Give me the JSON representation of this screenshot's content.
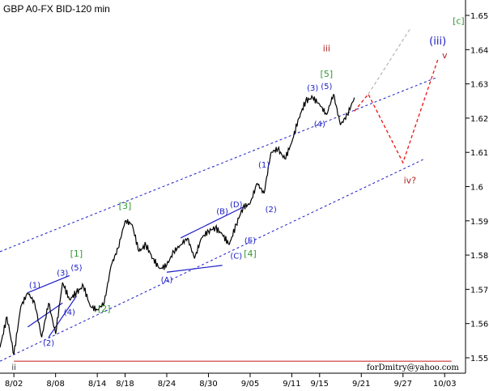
{
  "chart_data": {
    "type": "line",
    "title": "GBP A0-FX BID-120 min",
    "credit": "forDmitry@yahoo.com",
    "ylim": [
      1.5455,
      1.6545
    ],
    "yticks": [
      1.55,
      1.56,
      1.57,
      1.58,
      1.59,
      1.6,
      1.61,
      1.62,
      1.63,
      1.64,
      1.65
    ],
    "x_range": [
      "07/31",
      "10/06"
    ],
    "xticks": [
      {
        "date": "08/02",
        "label": "8/02"
      },
      {
        "date": "08/08",
        "label": "8/08"
      },
      {
        "date": "08/14",
        "label": "8/14"
      },
      {
        "date": "08/18",
        "label": "8/18"
      },
      {
        "date": "08/24",
        "label": "8/24"
      },
      {
        "date": "08/30",
        "label": "8/30"
      },
      {
        "date": "09/05",
        "label": "9/05"
      },
      {
        "date": "09/11",
        "label": "9/11"
      },
      {
        "date": "09/15",
        "label": "9/15"
      },
      {
        "date": "09/21",
        "label": "9/21"
      },
      {
        "date": "09/27",
        "label": "9/27"
      },
      {
        "date": "10/03",
        "label": "10/03"
      }
    ],
    "grid": false,
    "series": [
      {
        "color": "#000000",
        "points": [
          [
            "07/31",
            1.553
          ],
          [
            "08/01",
            1.562
          ],
          [
            "08/02",
            1.551
          ],
          [
            "08/03",
            1.565
          ],
          [
            "08/04",
            1.569
          ],
          [
            "08/05",
            1.566
          ],
          [
            "08/06",
            1.556
          ],
          [
            "08/07",
            1.566
          ],
          [
            "08/08",
            1.557
          ],
          [
            "08/09",
            1.572
          ],
          [
            "08/10",
            1.567
          ],
          [
            "08/11",
            1.569
          ],
          [
            "08/12",
            1.571
          ],
          [
            "08/13",
            1.565
          ],
          [
            "08/14",
            1.564
          ],
          [
            "08/15",
            1.566
          ],
          [
            "08/16",
            1.577
          ],
          [
            "08/17",
            1.582
          ],
          [
            "08/18",
            1.59
          ],
          [
            "08/19",
            1.589
          ],
          [
            "08/20",
            1.581
          ],
          [
            "08/21",
            1.583
          ],
          [
            "08/22",
            1.579
          ],
          [
            "08/23",
            1.576
          ],
          [
            "08/24",
            1.577
          ],
          [
            "08/25",
            1.581
          ],
          [
            "08/26",
            1.583
          ],
          [
            "08/27",
            1.585
          ],
          [
            "08/28",
            1.579
          ],
          [
            "08/29",
            1.585
          ],
          [
            "08/30",
            1.587
          ],
          [
            "08/31",
            1.588
          ],
          [
            "09/01",
            1.586
          ],
          [
            "09/02",
            1.583
          ],
          [
            "09/03",
            1.589
          ],
          [
            "09/04",
            1.594
          ],
          [
            "09/05",
            1.595
          ],
          [
            "09/06",
            1.601
          ],
          [
            "09/07",
            1.598
          ],
          [
            "09/08",
            1.61
          ],
          [
            "09/09",
            1.611
          ],
          [
            "09/10",
            1.608
          ],
          [
            "09/11",
            1.613
          ],
          [
            "09/12",
            1.62
          ],
          [
            "09/13",
            1.625
          ],
          [
            "09/14",
            1.626
          ],
          [
            "09/15",
            1.624
          ],
          [
            "09/16",
            1.621
          ],
          [
            "09/17",
            1.627
          ],
          [
            "09/18",
            1.618
          ],
          [
            "09/19",
            1.621
          ],
          [
            "09/20",
            1.626
          ]
        ]
      },
      {
        "name": "forecast",
        "color": "#ee1111",
        "dashed": true,
        "points": [
          [
            "09/20",
            1.622
          ],
          [
            "09/22",
            1.627
          ],
          [
            "09/27",
            1.607
          ],
          [
            "10/02",
            1.637
          ]
        ]
      },
      {
        "name": "alternate",
        "color": "#bbbbbb",
        "dashed": true,
        "points": [
          [
            "09/22",
            1.627
          ],
          [
            "09/28",
            1.646
          ]
        ]
      }
    ],
    "channels": [
      {
        "color": "#1c1cc8",
        "dashed": true,
        "points": [
          [
            "07/31",
            1.581
          ],
          [
            "10/02",
            1.632
          ]
        ]
      },
      {
        "color": "#1c1cc8",
        "dashed": true,
        "points": [
          [
            "07/31",
            1.549
          ],
          [
            "09/30",
            1.608
          ]
        ]
      },
      {
        "color": "#1c1cc8",
        "dashed": false,
        "points": [
          [
            "08/04",
            1.569
          ],
          [
            "08/10",
            1.574
          ]
        ]
      },
      {
        "color": "#1c1cc8",
        "dashed": false,
        "points": [
          [
            "08/04",
            1.559
          ],
          [
            "08/09",
            1.566
          ]
        ]
      },
      {
        "color": "#1c1cc8",
        "dashed": false,
        "points": [
          [
            "08/07",
            1.556
          ],
          [
            "08/11",
            1.568
          ]
        ]
      },
      {
        "color": "#1c1cc8",
        "dashed": false,
        "points": [
          [
            "08/26",
            1.585
          ],
          [
            "09/04",
            1.594
          ]
        ]
      },
      {
        "color": "#1c1cc8",
        "dashed": false,
        "points": [
          [
            "08/24",
            1.575
          ],
          [
            "09/01",
            1.577
          ]
        ]
      }
    ],
    "hlines": [
      {
        "y": 1.549,
        "color": "#cc3333",
        "from": "08/02",
        "to": "10/04"
      }
    ],
    "annotations": [
      {
        "text": "ii",
        "date": "08/02",
        "y": 1.5465,
        "color": "#333333"
      },
      {
        "text": "(1)",
        "date": "08/05",
        "y": 1.5705,
        "color": "#1c1cc8"
      },
      {
        "text": "(2)",
        "date": "08/07",
        "y": 1.5535,
        "color": "#1c1cc8"
      },
      {
        "text": "(3)",
        "date": "08/09",
        "y": 1.574,
        "color": "#1c1cc8"
      },
      {
        "text": "(4)",
        "date": "08/10",
        "y": 1.5625,
        "color": "#1c1cc8"
      },
      {
        "text": "(5)",
        "date": "08/11",
        "y": 1.5755,
        "color": "#1c1cc8"
      },
      {
        "text": "[1]",
        "date": "08/11",
        "y": 1.5795,
        "color": "#339933"
      },
      {
        "text": "[2]",
        "date": "08/15",
        "y": 1.5635,
        "color": "#339933"
      },
      {
        "text": "[3]",
        "date": "08/18",
        "y": 1.5935,
        "color": "#339933"
      },
      {
        "text": "(A)",
        "date": "08/24",
        "y": 1.572,
        "color": "#1c1cc8"
      },
      {
        "text": "(B)",
        "date": "09/01",
        "y": 1.592,
        "color": "#1c1cc8"
      },
      {
        "text": "(C)",
        "date": "09/03",
        "y": 1.579,
        "color": "#1c1cc8"
      },
      {
        "text": "(D)",
        "date": "09/03",
        "y": 1.594,
        "color": "#1c1cc8"
      },
      {
        "text": "(E)",
        "date": "09/05",
        "y": 1.5835,
        "color": "#1c1cc8"
      },
      {
        "text": "[4]",
        "date": "09/05",
        "y": 1.5795,
        "color": "#339933"
      },
      {
        "text": "(1)",
        "date": "09/07",
        "y": 1.6055,
        "color": "#1c1cc8"
      },
      {
        "text": "(2)",
        "date": "09/08",
        "y": 1.5925,
        "color": "#1c1cc8"
      },
      {
        "text": "(3)",
        "date": "09/14",
        "y": 1.628,
        "color": "#1c1cc8"
      },
      {
        "text": "(4)",
        "date": "09/15",
        "y": 1.6175,
        "color": "#1c1cc8"
      },
      {
        "text": "(5)",
        "date": "09/16",
        "y": 1.6285,
        "color": "#1c1cc8"
      },
      {
        "text": "[5]",
        "date": "09/16",
        "y": 1.632,
        "color": "#339933"
      },
      {
        "text": "iii",
        "date": "09/16",
        "y": 1.6395,
        "color": "#aa2222"
      },
      {
        "text": "iv?",
        "date": "09/28",
        "y": 1.601,
        "color": "#aa2222"
      },
      {
        "text": "v",
        "date": "10/03",
        "y": 1.6375,
        "color": "#aa2222"
      },
      {
        "text": "(iii)",
        "date": "10/02",
        "y": 1.6415,
        "color": "#1c1cc8"
      },
      {
        "text": "[c]",
        "date": "10/05",
        "y": 1.6475,
        "color": "#339933"
      }
    ]
  }
}
